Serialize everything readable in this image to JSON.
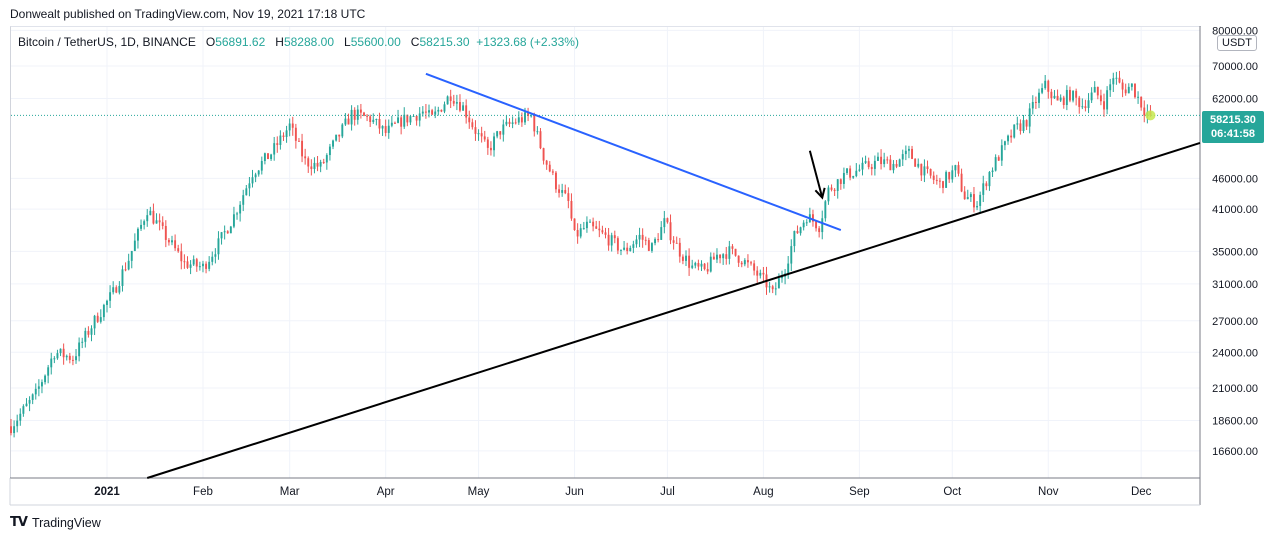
{
  "header": {
    "published": "Donwealt published on TradingView.com, Nov 19, 2021 17:18 UTC"
  },
  "legend": {
    "symbol": "Bitcoin / TetherUS, 1D, BINANCE",
    "open_label": "O",
    "open": "56891.62",
    "high_label": "H",
    "high": "58288.00",
    "low_label": "L",
    "low": "55600.00",
    "close_label": "C",
    "close": "58215.30",
    "change": "+1323.68 (+2.33%)"
  },
  "price_axis": {
    "unit": "USDT",
    "last_price": "58215.30",
    "countdown": "06:41:58"
  },
  "footer": {
    "brand": "TradingView"
  },
  "colors": {
    "up": "#26a69a",
    "down": "#ef5350",
    "downtrend_line": "#2962ff",
    "support_line": "#000000",
    "grid": "#f0f3fa",
    "last_price_line": "#26a69a"
  },
  "chart_data": {
    "type": "candlestick",
    "scale": "log",
    "ylim": [
      15000,
      81000
    ],
    "y_ticks": [
      80000,
      70000,
      62000,
      46000,
      41000,
      35000,
      31000,
      27000,
      24000,
      21000,
      18600,
      16600
    ],
    "y_tick_labels": [
      "80000.00",
      "70000.00",
      "62000.00",
      "46000.00",
      "41000.00",
      "35000.00",
      "31000.00",
      "27000.00",
      "24000.00",
      "21000.00",
      "18600.00",
      "16600.00"
    ],
    "x_labels": [
      "2021",
      "Feb",
      "Mar",
      "Apr",
      "May",
      "Jun",
      "Jul",
      "Aug",
      "Sep",
      "Oct",
      "Nov",
      "Dec"
    ],
    "x_label_days": [
      31,
      62,
      90,
      121,
      151,
      182,
      212,
      243,
      274,
      304,
      335,
      365
    ],
    "day_range": [
      0,
      384
    ],
    "keypoints": [
      {
        "day": 0,
        "price": 18200
      },
      {
        "day": 8,
        "price": 20500
      },
      {
        "day": 14,
        "price": 24000
      },
      {
        "day": 20,
        "price": 23500
      },
      {
        "day": 27,
        "price": 27000
      },
      {
        "day": 33,
        "price": 30000
      },
      {
        "day": 38,
        "price": 34000
      },
      {
        "day": 44,
        "price": 41000
      },
      {
        "day": 50,
        "price": 37000
      },
      {
        "day": 56,
        "price": 33500
      },
      {
        "day": 62,
        "price": 33000
      },
      {
        "day": 67,
        "price": 36000
      },
      {
        "day": 72,
        "price": 40000
      },
      {
        "day": 78,
        "price": 47000
      },
      {
        "day": 84,
        "price": 50500
      },
      {
        "day": 90,
        "price": 56000
      },
      {
        "day": 95,
        "price": 49000
      },
      {
        "day": 100,
        "price": 48000
      },
      {
        "day": 104,
        "price": 52000
      },
      {
        "day": 110,
        "price": 58500
      },
      {
        "day": 116,
        "price": 57500
      },
      {
        "day": 121,
        "price": 54500
      },
      {
        "day": 126,
        "price": 57000
      },
      {
        "day": 133,
        "price": 59000
      },
      {
        "day": 136,
        "price": 57500
      },
      {
        "day": 142,
        "price": 63000
      },
      {
        "day": 146,
        "price": 60000
      },
      {
        "day": 150,
        "price": 55000
      },
      {
        "day": 154,
        "price": 51000
      },
      {
        "day": 158,
        "price": 55000
      },
      {
        "day": 163,
        "price": 57000
      },
      {
        "day": 168,
        "price": 58000
      },
      {
        "day": 172,
        "price": 50000
      },
      {
        "day": 176,
        "price": 45000
      },
      {
        "day": 180,
        "price": 42000
      },
      {
        "day": 182,
        "price": 37000
      },
      {
        "day": 186,
        "price": 38500
      },
      {
        "day": 192,
        "price": 37000
      },
      {
        "day": 198,
        "price": 35000
      },
      {
        "day": 203,
        "price": 37000
      },
      {
        "day": 207,
        "price": 35500
      },
      {
        "day": 211,
        "price": 39000
      },
      {
        "day": 216,
        "price": 35000
      },
      {
        "day": 220,
        "price": 33000
      },
      {
        "day": 224,
        "price": 32500
      },
      {
        "day": 228,
        "price": 34500
      },
      {
        "day": 232,
        "price": 35000
      },
      {
        "day": 236,
        "price": 34000
      },
      {
        "day": 240,
        "price": 32500
      },
      {
        "day": 244,
        "price": 31000
      },
      {
        "day": 246,
        "price": 29800
      },
      {
        "day": 250,
        "price": 33000
      },
      {
        "day": 253,
        "price": 37000
      },
      {
        "day": 257,
        "price": 40000
      },
      {
        "day": 261,
        "price": 38500
      },
      {
        "day": 264,
        "price": 44000
      },
      {
        "day": 269,
        "price": 46500
      },
      {
        "day": 274,
        "price": 47500
      },
      {
        "day": 280,
        "price": 49000
      },
      {
        "day": 285,
        "price": 48500
      },
      {
        "day": 290,
        "price": 50500
      },
      {
        "day": 295,
        "price": 47000
      },
      {
        "day": 300,
        "price": 45000
      },
      {
        "day": 305,
        "price": 47500
      },
      {
        "day": 308,
        "price": 43000
      },
      {
        "day": 312,
        "price": 42000
      },
      {
        "day": 316,
        "price": 47000
      },
      {
        "day": 320,
        "price": 51000
      },
      {
        "day": 324,
        "price": 55000
      },
      {
        "day": 328,
        "price": 57000
      },
      {
        "day": 331,
        "price": 61500
      },
      {
        "day": 334,
        "price": 65000
      },
      {
        "day": 338,
        "price": 61000
      },
      {
        "day": 342,
        "price": 63000
      },
      {
        "day": 346,
        "price": 60500
      },
      {
        "day": 350,
        "price": 63500
      },
      {
        "day": 353,
        "price": 61000
      },
      {
        "day": 356,
        "price": 67500
      },
      {
        "day": 359,
        "price": 64000
      },
      {
        "day": 362,
        "price": 65000
      },
      {
        "day": 366,
        "price": 59500
      },
      {
        "day": 368,
        "price": 58215
      }
    ],
    "annotations": [
      {
        "kind": "trendline",
        "name": "downtrend-line",
        "color": "#2962ff",
        "from": {
          "day": 134,
          "price": 68000
        },
        "to": {
          "day": 268,
          "price": 37900
        }
      },
      {
        "kind": "trendline",
        "name": "support-line",
        "color": "#000000",
        "from": {
          "day": 44,
          "price": 15000
        },
        "to": {
          "day": 394,
          "price": 52500
        }
      },
      {
        "kind": "arrow",
        "name": "breakout-arrow",
        "color": "#000000",
        "from": {
          "day": 258,
          "price": 51000
        },
        "to": {
          "day": 262,
          "price": 42800
        }
      }
    ],
    "last_price": 58215.3
  }
}
